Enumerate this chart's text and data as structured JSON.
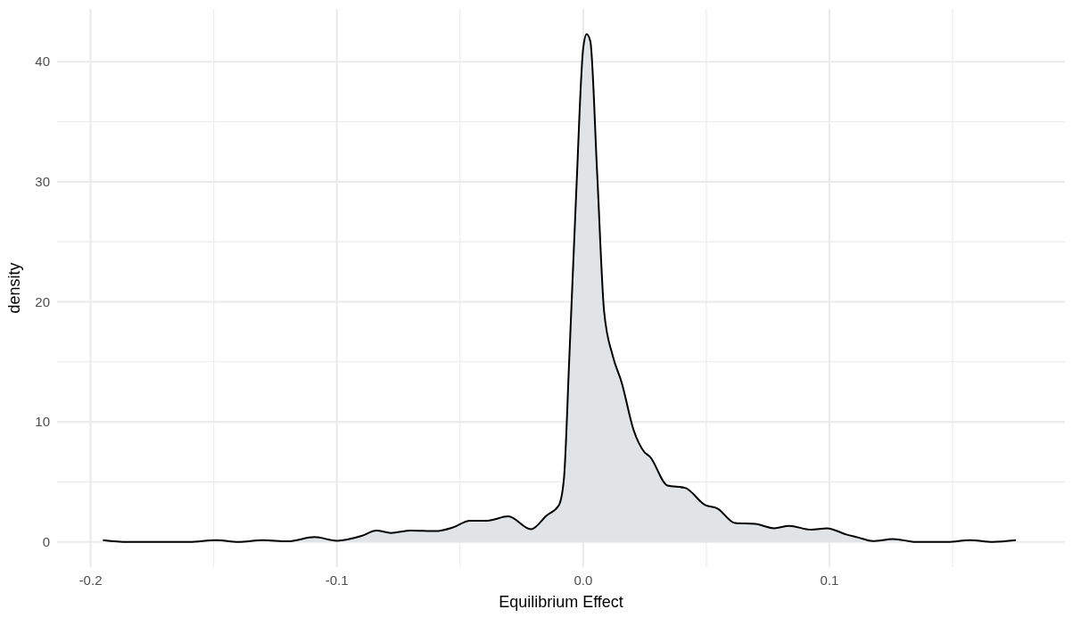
{
  "chart_data": {
    "type": "area",
    "xlabel": "Equilibrium Effect",
    "ylabel": "density",
    "xlim": [
      -0.2136,
      0.1956
    ],
    "ylim": [
      -2.1,
      44.4
    ],
    "xticks": [
      {
        "value": -0.2,
        "label": "-0.2"
      },
      {
        "value": -0.15,
        "label": null
      },
      {
        "value": -0.1,
        "label": "-0.1"
      },
      {
        "value": -0.05,
        "label": null
      },
      {
        "value": 0,
        "label": "0.0"
      },
      {
        "value": 0.05,
        "label": null
      },
      {
        "value": 0.1,
        "label": "0.1"
      },
      {
        "value": 0.15,
        "label": null
      }
    ],
    "yticks": [
      0,
      {
        "value": 5,
        "label": null
      },
      10,
      {
        "value": 15,
        "label": null
      },
      20,
      {
        "value": 25,
        "label": null
      },
      30,
      {
        "value": 35,
        "label": null
      },
      40
    ],
    "grid": true,
    "series": [
      {
        "color": "#e1e4e7",
        "x": [
          -0.195,
          -0.185,
          -0.16,
          -0.149,
          -0.14,
          -0.13,
          -0.12,
          -0.109,
          -0.1,
          -0.09,
          -0.084,
          -0.078,
          -0.07,
          -0.06,
          -0.053,
          -0.046,
          -0.039,
          -0.0304,
          -0.0212,
          -0.0149,
          -0.0099,
          -0.0078,
          -0.0057,
          -0.0028,
          0,
          0.0014,
          0.0029,
          0.0057,
          0.0085,
          0.012,
          0.0156,
          0.0205,
          0.0248,
          0.0271,
          0.0342,
          0.0414,
          0.0497,
          0.0544,
          0.0616,
          0.0699,
          0.0776,
          0.0836,
          0.0925,
          0.099,
          0.1068,
          0.1115,
          0.1175,
          0.1258,
          0.1353,
          0.148,
          0.157,
          0.1663,
          0.1757
        ],
        "values": [
          0.15,
          0,
          0,
          0.15,
          0,
          0.15,
          0.05,
          0.4,
          0.1,
          0.5,
          0.95,
          0.75,
          0.95,
          0.9,
          1.2,
          1.77,
          1.77,
          2.13,
          1.05,
          2.19,
          3.04,
          5.3,
          15,
          29.2,
          41.1,
          42.3,
          41.7,
          30.6,
          19.2,
          15.5,
          13.3,
          9.3,
          7.5,
          7.1,
          4.7,
          4.5,
          3.05,
          2.8,
          1.57,
          1.5,
          1.14,
          1.34,
          1.02,
          1.14,
          0.62,
          0.38,
          0.07,
          0.24,
          0,
          0,
          0.14,
          0,
          0.14
        ]
      }
    ]
  }
}
